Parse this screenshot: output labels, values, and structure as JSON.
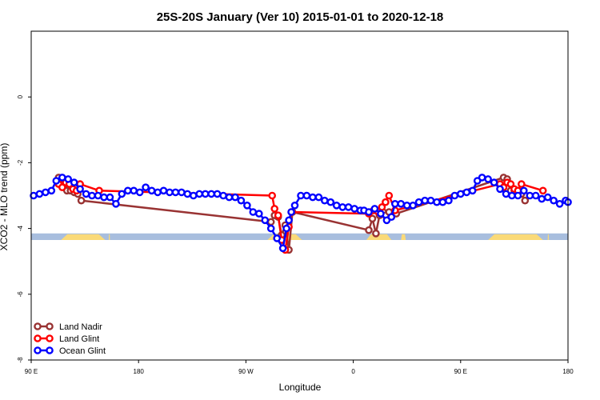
{
  "chart_data": {
    "type": "line",
    "title": "25S-20S January (Ver 10)   2015-01-01 to 2020-12-18",
    "xlabel": "Longitude",
    "ylabel": "XCO2 - MLO trend (ppm)",
    "xlim": [
      90,
      540
    ],
    "ylim": [
      -8,
      2
    ],
    "x_ticks": [
      {
        "x": 90,
        "label": "90 E"
      },
      {
        "x": 180,
        "label": "180"
      },
      {
        "x": 270,
        "label": "90 W"
      },
      {
        "x": 360,
        "label": "0"
      },
      {
        "x": 450,
        "label": "90 E"
      },
      {
        "x": 540,
        "label": "180"
      }
    ],
    "y_ticks": [
      {
        "y": 0,
        "label": "0"
      },
      {
        "y": -2,
        "label": "-2"
      },
      {
        "y": -4,
        "label": "-4"
      },
      {
        "y": -6,
        "label": "-6"
      },
      {
        "y": -8,
        "label": "-8"
      }
    ],
    "legend": {
      "position": "bottom-left",
      "entries": [
        {
          "name": "Land Nadir",
          "color": "#993333"
        },
        {
          "name": "Land Glint",
          "color": "#ff0000"
        },
        {
          "name": "Ocean Glint",
          "color": "#0000ff"
        }
      ]
    },
    "land_ocean_band": {
      "y_range": [
        -4.35,
        -4.15
      ],
      "ocean_color": "#a8bede",
      "land_color": "#fada78",
      "land_segments": [
        [
          115,
          152
        ],
        [
          155,
          156
        ],
        [
          288,
          317
        ],
        [
          371,
          392
        ],
        [
          400,
          404
        ],
        [
          473,
          519
        ],
        [
          523,
          524
        ]
      ]
    },
    "series": [
      {
        "name": "Land Nadir",
        "color": "#993333",
        "points": [
          [
            113,
            -2.45
          ],
          [
            117,
            -2.5
          ],
          [
            120,
            -2.85
          ],
          [
            123,
            -2.85
          ],
          [
            126,
            -2.9
          ],
          [
            129,
            -2.95
          ],
          [
            132,
            -3.15
          ],
          [
            291,
            -3.8
          ],
          [
            294,
            -3.6
          ],
          [
            297,
            -3.65
          ],
          [
            300,
            -4.2
          ],
          [
            303,
            -3.9
          ],
          [
            306,
            -4.65
          ],
          [
            309,
            -3.5
          ],
          [
            373,
            -4.05
          ],
          [
            376,
            -3.7
          ],
          [
            379,
            -4.15
          ],
          [
            382,
            -3.6
          ],
          [
            385,
            -3.5
          ],
          [
            387,
            -3.6
          ],
          [
            390,
            -3.5
          ],
          [
            396,
            -3.55
          ],
          [
            486,
            -2.45
          ],
          [
            489,
            -2.5
          ],
          [
            492,
            -2.85
          ],
          [
            495,
            -2.85
          ],
          [
            498,
            -2.9
          ],
          [
            501,
            -2.95
          ],
          [
            504,
            -3.15
          ]
        ]
      },
      {
        "name": "Land Glint",
        "color": "#ff0000",
        "points": [
          [
            113,
            -2.65
          ],
          [
            116,
            -2.75
          ],
          [
            119,
            -2.6
          ],
          [
            122,
            -2.65
          ],
          [
            125,
            -2.8
          ],
          [
            128,
            -2.85
          ],
          [
            131,
            -2.65
          ],
          [
            147,
            -2.85
          ],
          [
            292,
            -3.0
          ],
          [
            294,
            -3.4
          ],
          [
            297,
            -3.6
          ],
          [
            300,
            -4.35
          ],
          [
            303,
            -4.65
          ],
          [
            306,
            -3.95
          ],
          [
            308,
            -3.5
          ],
          [
            373,
            -3.55
          ],
          [
            377,
            -3.45
          ],
          [
            381,
            -3.5
          ],
          [
            384,
            -3.35
          ],
          [
            387,
            -3.2
          ],
          [
            390,
            -3.0
          ],
          [
            395,
            -3.45
          ],
          [
            483,
            -2.65
          ],
          [
            486,
            -2.75
          ],
          [
            489,
            -2.6
          ],
          [
            492,
            -2.65
          ],
          [
            495,
            -2.8
          ],
          [
            498,
            -2.85
          ],
          [
            501,
            -2.65
          ],
          [
            519,
            -2.85
          ]
        ]
      },
      {
        "name": "Ocean Glint",
        "color": "#0000ff",
        "points": [
          [
            92,
            -3.0
          ],
          [
            97,
            -2.95
          ],
          [
            102,
            -2.9
          ],
          [
            107,
            -2.85
          ],
          [
            111,
            -2.55
          ],
          [
            116,
            -2.45
          ],
          [
            121,
            -2.5
          ],
          [
            126,
            -2.6
          ],
          [
            131,
            -2.8
          ],
          [
            136,
            -2.95
          ],
          [
            141,
            -3.0
          ],
          [
            146,
            -3.0
          ],
          [
            151,
            -3.05
          ],
          [
            156,
            -3.05
          ],
          [
            161,
            -3.25
          ],
          [
            166,
            -2.95
          ],
          [
            171,
            -2.85
          ],
          [
            176,
            -2.85
          ],
          [
            181,
            -2.9
          ],
          [
            186,
            -2.75
          ],
          [
            191,
            -2.85
          ],
          [
            196,
            -2.9
          ],
          [
            201,
            -2.85
          ],
          [
            206,
            -2.9
          ],
          [
            211,
            -2.9
          ],
          [
            216,
            -2.9
          ],
          [
            221,
            -2.95
          ],
          [
            226,
            -3.0
          ],
          [
            231,
            -2.95
          ],
          [
            236,
            -2.95
          ],
          [
            241,
            -2.95
          ],
          [
            246,
            -2.95
          ],
          [
            251,
            -3.0
          ],
          [
            256,
            -3.05
          ],
          [
            261,
            -3.05
          ],
          [
            266,
            -3.15
          ],
          [
            271,
            -3.3
          ],
          [
            276,
            -3.5
          ],
          [
            281,
            -3.55
          ],
          [
            286,
            -3.75
          ],
          [
            291,
            -4.0
          ],
          [
            296,
            -4.3
          ],
          [
            301,
            -4.6
          ],
          [
            304,
            -4.0
          ],
          [
            306,
            -3.75
          ],
          [
            308,
            -3.5
          ],
          [
            311,
            -3.3
          ],
          [
            316,
            -3.0
          ],
          [
            321,
            -3.0
          ],
          [
            326,
            -3.05
          ],
          [
            331,
            -3.05
          ],
          [
            336,
            -3.15
          ],
          [
            341,
            -3.2
          ],
          [
            346,
            -3.3
          ],
          [
            351,
            -3.35
          ],
          [
            356,
            -3.35
          ],
          [
            361,
            -3.4
          ],
          [
            366,
            -3.45
          ],
          [
            369,
            -3.45
          ],
          [
            373,
            -3.5
          ],
          [
            378,
            -3.4
          ],
          [
            383,
            -3.55
          ],
          [
            388,
            -3.75
          ],
          [
            392,
            -3.65
          ],
          [
            395,
            -3.25
          ],
          [
            400,
            -3.25
          ],
          [
            405,
            -3.3
          ],
          [
            410,
            -3.3
          ],
          [
            415,
            -3.2
          ],
          [
            420,
            -3.15
          ],
          [
            425,
            -3.15
          ],
          [
            430,
            -3.2
          ],
          [
            435,
            -3.2
          ],
          [
            440,
            -3.15
          ],
          [
            445,
            -3.0
          ],
          [
            450,
            -2.95
          ],
          [
            455,
            -2.9
          ],
          [
            460,
            -2.85
          ],
          [
            464,
            -2.55
          ],
          [
            468,
            -2.45
          ],
          [
            473,
            -2.5
          ],
          [
            478,
            -2.6
          ],
          [
            483,
            -2.8
          ],
          [
            488,
            -2.95
          ],
          [
            493,
            -3.0
          ],
          [
            498,
            -3.0
          ],
          [
            503,
            -2.85
          ],
          [
            508,
            -3.0
          ],
          [
            513,
            -3.0
          ],
          [
            518,
            -3.1
          ],
          [
            523,
            -3.05
          ],
          [
            528,
            -3.15
          ],
          [
            533,
            -3.25
          ],
          [
            538,
            -3.15
          ],
          [
            540,
            -3.2
          ]
        ]
      }
    ]
  }
}
